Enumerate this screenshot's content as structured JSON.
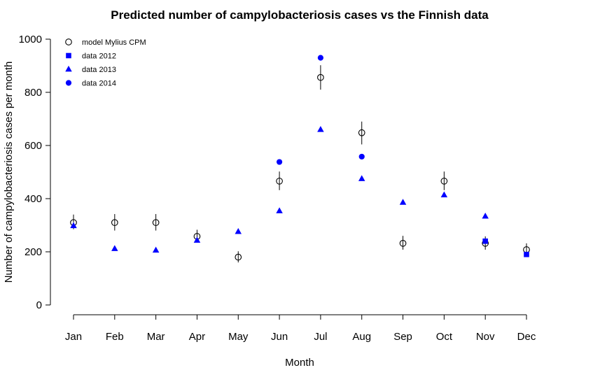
{
  "chart_data": {
    "type": "scatter",
    "title": "Predicted number of campylobacteriosis cases vs the Finnish data",
    "xlabel": "Month",
    "ylabel": "Number of campylobacteriosis cases per month",
    "categories": [
      "Jan",
      "Feb",
      "Mar",
      "Apr",
      "May",
      "Jun",
      "Jul",
      "Aug",
      "Sep",
      "Oct",
      "Nov",
      "Dec"
    ],
    "ylim": [
      0,
      1000
    ],
    "yticks": [
      0,
      200,
      400,
      600,
      800,
      1000
    ],
    "legend_position": "top-left",
    "grid": false,
    "colors": {
      "model": "#000000",
      "data": "#0000ff"
    },
    "series": [
      {
        "name": "model Mylius CPM",
        "marker": "open-circle",
        "values": [
          310,
          310,
          310,
          258,
          180,
          466,
          856,
          648,
          232,
          466,
          232,
          208
        ],
        "error_low": [
          285,
          280,
          280,
          235,
          160,
          432,
          810,
          604,
          208,
          432,
          208,
          186
        ],
        "error_high": [
          340,
          342,
          342,
          283,
          202,
          502,
          902,
          690,
          260,
          502,
          258,
          232
        ]
      },
      {
        "name": "data 2012",
        "marker": "filled-square",
        "values": [
          null,
          null,
          null,
          null,
          null,
          null,
          null,
          null,
          null,
          null,
          240,
          190
        ]
      },
      {
        "name": "data 2013",
        "marker": "filled-triangle",
        "values": [
          298,
          212,
          206,
          243,
          276,
          354,
          660,
          475,
          386,
          414,
          334,
          null
        ]
      },
      {
        "name": "data 2014",
        "marker": "filled-circle",
        "values": [
          null,
          null,
          null,
          null,
          null,
          538,
          930,
          558,
          null,
          null,
          null,
          null
        ]
      }
    ]
  }
}
